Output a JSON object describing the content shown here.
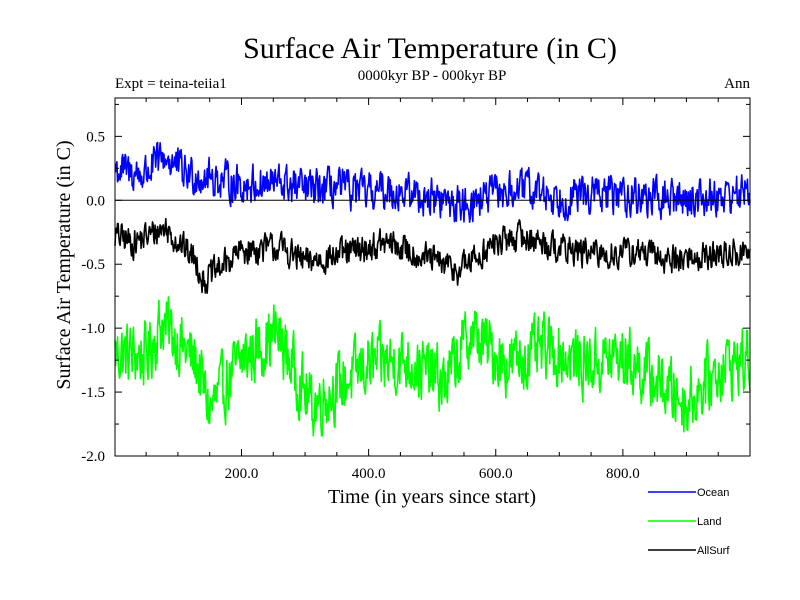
{
  "chart_data": {
    "type": "line",
    "title": "Surface Air Temperature (in C)",
    "subtitle": "0000kyr BP - 000kyr BP",
    "left_header": "Expt = teina-teiia1",
    "right_header": "Ann",
    "xlabel": "Time (in years since start)",
    "ylabel": "Surface Air Temperature (in C)",
    "xlim": [
      1,
      1000
    ],
    "ylim": [
      -2.0,
      0.8
    ],
    "x_ticks": [
      200,
      400,
      600,
      800
    ],
    "x_tick_labels": [
      "200.0",
      "400.0",
      "600.0",
      "800.0"
    ],
    "y_ticks": [
      0.5,
      0.0,
      -0.5,
      -1.0,
      -1.5,
      -2.0
    ],
    "y_tick_labels": [
      "0.5",
      "0.0",
      "-0.5",
      "-1.0",
      "-1.5",
      "-2.0"
    ],
    "grid": false,
    "zero_line": true,
    "legend_position": "bottom-right",
    "series": [
      {
        "name": "Ocean",
        "color": "#0000ff",
        "mean": 0.08,
        "amplitude": 0.13,
        "trend": -0.05,
        "anchors": [
          [
            1,
            0.35
          ],
          [
            20,
            0.32
          ],
          [
            45,
            0.28
          ],
          [
            80,
            0.52
          ],
          [
            110,
            0.3
          ],
          [
            150,
            0.25
          ],
          [
            200,
            0.15
          ],
          [
            260,
            0.18
          ],
          [
            300,
            0.1
          ],
          [
            350,
            0.12
          ],
          [
            400,
            0.05
          ],
          [
            430,
            0.1
          ],
          [
            500,
            0.0
          ],
          [
            540,
            -0.1
          ],
          [
            600,
            0.05
          ],
          [
            650,
            0.12
          ],
          [
            700,
            0.0
          ],
          [
            750,
            0.05
          ],
          [
            800,
            0.05
          ],
          [
            850,
            0.0
          ],
          [
            900,
            0.0
          ],
          [
            960,
            0.05
          ],
          [
            1000,
            0.08
          ]
        ]
      },
      {
        "name": "Land",
        "color": "#00ff00",
        "mean": -1.25,
        "amplitude": 0.22,
        "trend": 0.0,
        "anchors": [
          [
            1,
            -1.15
          ],
          [
            50,
            -1.2
          ],
          [
            75,
            -0.75
          ],
          [
            130,
            -1.3
          ],
          [
            150,
            -1.9
          ],
          [
            200,
            -1.25
          ],
          [
            255,
            -0.9
          ],
          [
            310,
            -1.85
          ],
          [
            400,
            -1.3
          ],
          [
            460,
            -1.25
          ],
          [
            520,
            -1.55
          ],
          [
            560,
            -0.9
          ],
          [
            620,
            -1.3
          ],
          [
            680,
            -1.1
          ],
          [
            740,
            -1.3
          ],
          [
            800,
            -1.2
          ],
          [
            900,
            -1.8
          ],
          [
            960,
            -1.3
          ],
          [
            1000,
            -1.25
          ]
        ]
      },
      {
        "name": "AllSurf",
        "color": "#000000",
        "mean": -0.38,
        "amplitude": 0.1,
        "trend": -0.03,
        "anchors": [
          [
            1,
            -0.2
          ],
          [
            30,
            -0.3
          ],
          [
            80,
            -0.1
          ],
          [
            130,
            -0.55
          ],
          [
            140,
            -0.8
          ],
          [
            200,
            -0.4
          ],
          [
            260,
            -0.35
          ],
          [
            300,
            -0.55
          ],
          [
            380,
            -0.4
          ],
          [
            430,
            -0.3
          ],
          [
            480,
            -0.45
          ],
          [
            540,
            -0.65
          ],
          [
            600,
            -0.3
          ],
          [
            640,
            -0.2
          ],
          [
            700,
            -0.35
          ],
          [
            760,
            -0.45
          ],
          [
            820,
            -0.4
          ],
          [
            870,
            -0.5
          ],
          [
            940,
            -0.45
          ],
          [
            1000,
            -0.4
          ]
        ]
      }
    ]
  }
}
